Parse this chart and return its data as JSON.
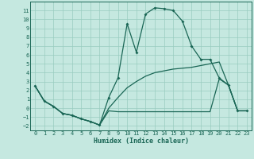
{
  "xlabel": "Humidex (Indice chaleur)",
  "xlim": [
    -0.5,
    23.5
  ],
  "ylim": [
    -2.5,
    12.0
  ],
  "yticks": [
    -2,
    -1,
    0,
    1,
    2,
    3,
    4,
    5,
    6,
    7,
    8,
    9,
    10,
    11
  ],
  "xticks": [
    0,
    1,
    2,
    3,
    4,
    5,
    6,
    7,
    8,
    9,
    10,
    11,
    12,
    13,
    14,
    15,
    16,
    17,
    18,
    19,
    20,
    21,
    22,
    23
  ],
  "bg_color": "#c5e8e0",
  "grid_color": "#99ccbf",
  "line_color": "#1a6655",
  "line1_x": [
    0,
    1,
    2,
    3,
    4,
    5,
    6,
    7,
    8,
    9,
    10,
    11,
    12,
    13,
    14,
    15,
    16,
    17,
    18,
    19,
    20,
    21,
    22,
    23
  ],
  "line1_y": [
    2.5,
    0.8,
    0.2,
    -0.6,
    -0.8,
    -1.2,
    -1.5,
    -1.9,
    1.2,
    3.4,
    9.5,
    6.3,
    10.6,
    11.3,
    11.2,
    11.0,
    9.8,
    7.0,
    5.5,
    5.5,
    3.4,
    2.6,
    -0.3,
    -0.3
  ],
  "line2_x": [
    0,
    1,
    2,
    3,
    4,
    5,
    6,
    7,
    8,
    9,
    10,
    11,
    12,
    13,
    14,
    15,
    16,
    17,
    18,
    19,
    20,
    21,
    22,
    23
  ],
  "line2_y": [
    2.5,
    0.8,
    0.2,
    -0.6,
    -0.8,
    -1.2,
    -1.5,
    -1.9,
    0.0,
    1.2,
    2.3,
    3.0,
    3.6,
    4.0,
    4.2,
    4.4,
    4.5,
    4.6,
    4.8,
    5.0,
    5.2,
    2.6,
    -0.3,
    -0.3
  ],
  "line3_x": [
    0,
    1,
    2,
    3,
    4,
    5,
    6,
    7,
    8,
    9,
    10,
    11,
    12,
    13,
    14,
    15,
    16,
    17,
    18,
    19,
    20,
    21,
    22,
    23
  ],
  "line3_y": [
    2.5,
    0.8,
    0.2,
    -0.6,
    -0.8,
    -1.2,
    -1.5,
    -1.9,
    -0.3,
    -0.4,
    -0.4,
    -0.4,
    -0.4,
    -0.4,
    -0.4,
    -0.4,
    -0.4,
    -0.4,
    -0.4,
    -0.4,
    3.3,
    2.6,
    -0.3,
    -0.3
  ],
  "lw": 0.9,
  "ms": 2.0
}
